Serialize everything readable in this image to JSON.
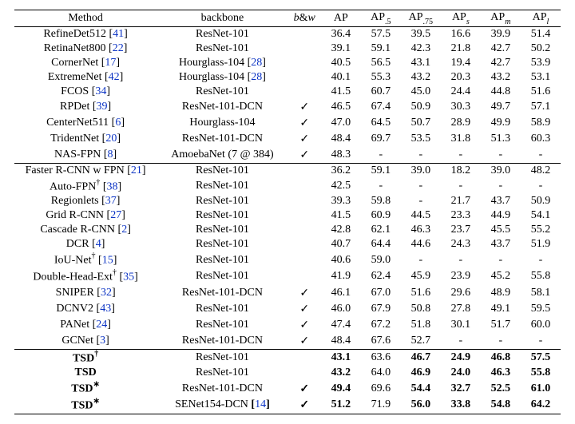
{
  "header": {
    "method": "Method",
    "backbone": "backbone",
    "bw_html": "<i>b</i>&amp;<i>w</i>",
    "ap": "AP",
    "ap5_html": "AP<span class=\"sub\">.5</span>",
    "ap75_html": "AP<span class=\"sub\">.75</span>",
    "aps_html": "AP<span class=\"sub\"><i>s</i></span>",
    "apm_html": "AP<span class=\"sub\"><i>m</i></span>",
    "apl_html": "AP<span class=\"sub\"><i>l</i></span>"
  },
  "cite_color": "#0b33c4",
  "groups": [
    {
      "rows": [
        {
          "method_html": "RefineDet512 [<span class=\"cite\">41</span>]",
          "backbone_html": "ResNet-101",
          "bw": "",
          "ap": "36.4",
          "ap5": "57.5",
          "ap75": "39.5",
          "aps": "16.6",
          "apm": "39.9",
          "apl": "51.4"
        },
        {
          "method_html": "RetinaNet800 [<span class=\"cite\">22</span>]",
          "backbone_html": "ResNet-101",
          "bw": "",
          "ap": "39.1",
          "ap5": "59.1",
          "ap75": "42.3",
          "aps": "21.8",
          "apm": "42.7",
          "apl": "50.2"
        },
        {
          "method_html": "CornerNet [<span class=\"cite\">17</span>]",
          "backbone_html": "Hourglass-104 [<span class=\"cite\">28</span>]",
          "bw": "",
          "ap": "40.5",
          "ap5": "56.5",
          "ap75": "43.1",
          "aps": "19.4",
          "apm": "42.7",
          "apl": "53.9"
        },
        {
          "method_html": "ExtremeNet [<span class=\"cite\">42</span>]",
          "backbone_html": "Hourglass-104 [<span class=\"cite\">28</span>]",
          "bw": "",
          "ap": "40.1",
          "ap5": "55.3",
          "ap75": "43.2",
          "aps": "20.3",
          "apm": "43.2",
          "apl": "53.1"
        },
        {
          "method_html": "FCOS [<span class=\"cite\">34</span>]",
          "backbone_html": "ResNet-101",
          "bw": "",
          "ap": "41.5",
          "ap5": "60.7",
          "ap75": "45.0",
          "aps": "24.4",
          "apm": "44.8",
          "apl": "51.6"
        },
        {
          "method_html": "RPDet [<span class=\"cite\">39</span>]",
          "backbone_html": "ResNet-101-DCN",
          "bw": "✓",
          "ap": "46.5",
          "ap5": "67.4",
          "ap75": "50.9",
          "aps": "30.3",
          "apm": "49.7",
          "apl": "57.1"
        },
        {
          "method_html": "CenterNet511 [<span class=\"cite\">6</span>]",
          "backbone_html": "Hourglass-104",
          "bw": "✓",
          "ap": "47.0",
          "ap5": "64.5",
          "ap75": "50.7",
          "aps": "28.9",
          "apm": "49.9",
          "apl": "58.9"
        },
        {
          "method_html": "TridentNet [<span class=\"cite\">20</span>]",
          "backbone_html": "ResNet-101-DCN",
          "bw": "✓",
          "ap": "48.4",
          "ap5": "69.7",
          "ap75": "53.5",
          "aps": "31.8",
          "apm": "51.3",
          "apl": "60.3"
        },
        {
          "method_html": "NAS-FPN [<span class=\"cite\">8</span>]",
          "backbone_html": "AmoebaNet (7 @ 384)",
          "bw": "✓",
          "ap": "48.3",
          "ap5": "-",
          "ap75": "-",
          "aps": "-",
          "apm": "-",
          "apl": "-"
        }
      ]
    },
    {
      "rows": [
        {
          "method_html": "Faster R-CNN w FPN [<span class=\"cite\">21</span>]",
          "backbone_html": "ResNet-101",
          "bw": "",
          "ap": "36.2",
          "ap5": "59.1",
          "ap75": "39.0",
          "aps": "18.2",
          "apm": "39.0",
          "apl": "48.2"
        },
        {
          "method_html": "Auto-FPN<span class=\"sup\">†</span> [<span class=\"cite\">38</span>]",
          "backbone_html": "ResNet-101",
          "bw": "",
          "ap": "42.5",
          "ap5": "-",
          "ap75": "-",
          "aps": "-",
          "apm": "-",
          "apl": "-"
        },
        {
          "method_html": "Regionlets [<span class=\"cite\">37</span>]",
          "backbone_html": "ResNet-101",
          "bw": "",
          "ap": "39.3",
          "ap5": "59.8",
          "ap75": "-",
          "aps": "21.7",
          "apm": "43.7",
          "apl": "50.9"
        },
        {
          "method_html": "Grid R-CNN [<span class=\"cite\">27</span>]",
          "backbone_html": "ResNet-101",
          "bw": "",
          "ap": "41.5",
          "ap5": "60.9",
          "ap75": "44.5",
          "aps": "23.3",
          "apm": "44.9",
          "apl": "54.1"
        },
        {
          "method_html": "Cascade R-CNN [<span class=\"cite\">2</span>]",
          "backbone_html": "ResNet-101",
          "bw": "",
          "ap": "42.8",
          "ap5": "62.1",
          "ap75": "46.3",
          "aps": "23.7",
          "apm": "45.5",
          "apl": "55.2"
        },
        {
          "method_html": "DCR [<span class=\"cite\">4</span>]",
          "backbone_html": "ResNet-101",
          "bw": "",
          "ap": "40.7",
          "ap5": "64.4",
          "ap75": "44.6",
          "aps": "24.3",
          "apm": "43.7",
          "apl": "51.9"
        },
        {
          "method_html": "IoU-Net<span class=\"sup\">†</span> [<span class=\"cite\">15</span>]",
          "backbone_html": "ResNet-101",
          "bw": "",
          "ap": "40.6",
          "ap5": "59.0",
          "ap75": "-",
          "aps": "-",
          "apm": "-",
          "apl": "-"
        },
        {
          "method_html": "Double-Head-Ext<span class=\"sup\">†</span> [<span class=\"cite\">35</span>]",
          "backbone_html": "ResNet-101",
          "bw": "",
          "ap": "41.9",
          "ap5": "62.4",
          "ap75": "45.9",
          "aps": "23.9",
          "apm": "45.2",
          "apl": "55.8"
        },
        {
          "method_html": "SNIPER [<span class=\"cite\">32</span>]",
          "backbone_html": "ResNet-101-DCN",
          "bw": "✓",
          "ap": "46.1",
          "ap5": "67.0",
          "ap75": "51.6",
          "aps": "29.6",
          "apm": "48.9",
          "apl": "58.1"
        },
        {
          "method_html": "DCNV2 [<span class=\"cite\">43</span>]",
          "backbone_html": "ResNet-101",
          "bw": "✓",
          "ap": "46.0",
          "ap5": "67.9",
          "ap75": "50.8",
          "aps": "27.8",
          "apm": "49.1",
          "apl": "59.5"
        },
        {
          "method_html": "PANet [<span class=\"cite\">24</span>]",
          "backbone_html": "ResNet-101",
          "bw": "✓",
          "ap": "47.4",
          "ap5": "67.2",
          "ap75": "51.8",
          "aps": "30.1",
          "apm": "51.7",
          "apl": "60.0"
        },
        {
          "method_html": "GCNet [<span class=\"cite\">3</span>]",
          "backbone_html": "ResNet-101-DCN",
          "bw": "✓",
          "ap": "48.4",
          "ap5": "67.6",
          "ap75": "52.7",
          "aps": "-",
          "apm": "-",
          "apl": "-"
        }
      ]
    },
    {
      "bold": true,
      "rows": [
        {
          "method_html": "<b>TSD</b><span class=\"sup\">†</span>",
          "backbone_html": "<span class=\"nb\">ResNet-101</span>",
          "bw": "",
          "ap": "43.1",
          "ap5": "63.6",
          "ap75": "46.7",
          "aps": "24.9",
          "apm": "46.8",
          "apl": "57.5"
        },
        {
          "method_html": "<b>TSD</b>",
          "backbone_html": "<span class=\"nb\">ResNet-101</span>",
          "bw": "",
          "ap": "43.2",
          "ap5": "64.0",
          "ap75": "46.9",
          "aps": "24.0",
          "apm": "46.3",
          "apl": "55.8"
        },
        {
          "method_html": "<b>TSD</b><span class=\"sup\">∗</span>",
          "backbone_html": "<span class=\"nb\">ResNet-101-DCN</span>",
          "bw": "✓",
          "ap": "49.4",
          "ap5": "69.6",
          "ap75": "54.4",
          "aps": "32.7",
          "apm": "52.5",
          "apl": "61.0"
        },
        {
          "method_html": "<b>TSD</b><span class=\"sup\">∗</span>",
          "backbone_html": "<span class=\"nb\">SENet154-DCN</span> [<span class=\"cite\">14</span>]",
          "bw": "✓",
          "ap": "51.2",
          "ap5": "71.9",
          "ap75": "56.0",
          "aps": "33.8",
          "apm": "54.8",
          "apl": "64.2"
        }
      ]
    }
  ]
}
